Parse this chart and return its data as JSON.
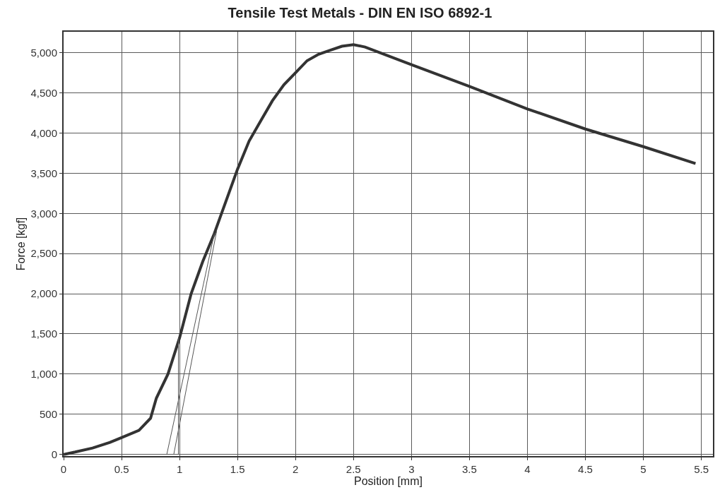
{
  "chart_data": {
    "type": "line",
    "title": "Tensile Test Metals - DIN EN ISO 6892-1",
    "xlabel": "Position [mm]",
    "ylabel": "Force [kgf]",
    "xlim": [
      0,
      5.6
    ],
    "ylim": [
      -20,
      5260
    ],
    "xticks": [
      0,
      0.5,
      1,
      1.5,
      2,
      2.5,
      3,
      3.5,
      4,
      4.5,
      5,
      5.5
    ],
    "yticks": [
      {
        "value": 0,
        "label": "0"
      },
      {
        "value": 500,
        "label": "500"
      },
      {
        "value": 1000,
        "label": "1,000"
      },
      {
        "value": 1500,
        "label": "1,500"
      },
      {
        "value": 2000,
        "label": "2,000"
      },
      {
        "value": 2500,
        "label": "2,500"
      },
      {
        "value": 3000,
        "label": "3,000"
      },
      {
        "value": 3500,
        "label": "3,500"
      },
      {
        "value": 4000,
        "label": "4,000"
      },
      {
        "value": 4500,
        "label": "4,500"
      },
      {
        "value": 5000,
        "label": "5,000"
      }
    ],
    "grid": true,
    "series": [
      {
        "color": "#333333",
        "x": [
          0,
          0.1,
          0.25,
          0.4,
          0.5,
          0.65,
          0.75,
          0.8,
          0.9,
          1.0,
          1.1,
          1.2,
          1.3,
          1.35,
          1.5,
          1.6,
          1.7,
          1.8,
          1.9,
          2.0,
          2.1,
          2.2,
          2.3,
          2.4,
          2.5,
          2.6,
          3.0,
          3.5,
          4.0,
          4.5,
          5.0,
          5.45
        ],
        "values": [
          0,
          30,
          80,
          150,
          210,
          300,
          450,
          700,
          1000,
          1450,
          2000,
          2400,
          2750,
          2950,
          3550,
          3900,
          4150,
          4400,
          4600,
          4750,
          4900,
          4980,
          5030,
          5080,
          5100,
          5070,
          4850,
          4580,
          4300,
          4050,
          3830,
          3620
        ]
      },
      {
        "color": "#555555",
        "x": [
          0.89,
          1.3
        ],
        "values": [
          0,
          2750
        ]
      },
      {
        "color": "#555555",
        "x": [
          0.95,
          1.32
        ],
        "values": [
          0,
          2780
        ]
      },
      {
        "color": "#555555",
        "x": [
          0.99,
          0.99
        ],
        "values": [
          0,
          1450
        ]
      }
    ]
  }
}
